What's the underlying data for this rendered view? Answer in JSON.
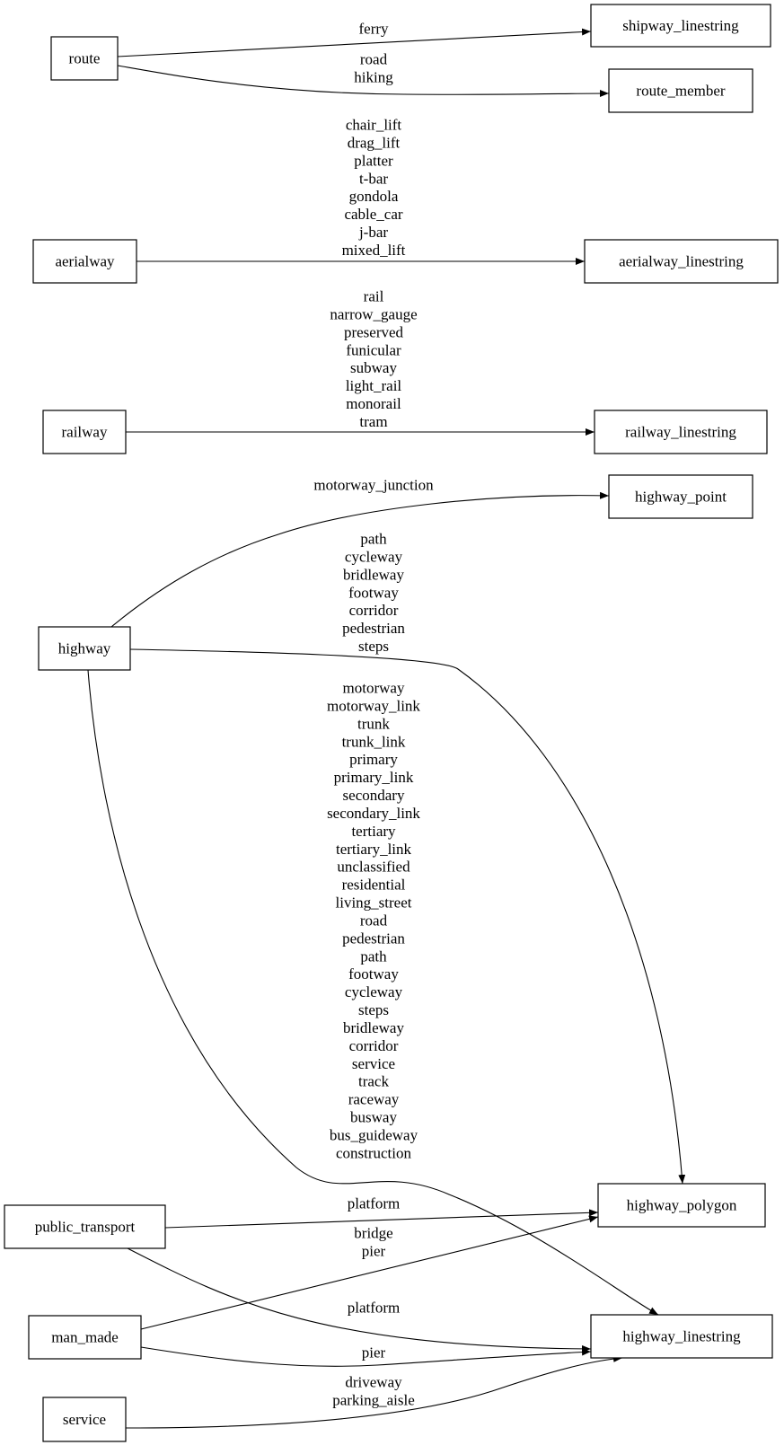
{
  "nodes": {
    "route": "route",
    "shipway_linestring": "shipway_linestring",
    "route_member": "route_member",
    "aerialway": "aerialway",
    "aerialway_linestring": "aerialway_linestring",
    "railway": "railway",
    "railway_linestring": "railway_linestring",
    "highway_point": "highway_point",
    "highway": "highway",
    "highway_polygon": "highway_polygon",
    "highway_linestring": "highway_linestring",
    "public_transport": "public_transport",
    "man_made": "man_made",
    "service": "service"
  },
  "edges": [
    {
      "from": "route",
      "to": "shipway_linestring",
      "labels": [
        "ferry"
      ]
    },
    {
      "from": "route",
      "to": "route_member",
      "labels": [
        "road",
        "hiking"
      ]
    },
    {
      "from": "aerialway",
      "to": "aerialway_linestring",
      "labels": [
        "chair_lift",
        "drag_lift",
        "platter",
        "t-bar",
        "gondola",
        "cable_car",
        "j-bar",
        "mixed_lift"
      ]
    },
    {
      "from": "railway",
      "to": "railway_linestring",
      "labels": [
        "rail",
        "narrow_gauge",
        "preserved",
        "funicular",
        "subway",
        "light_rail",
        "monorail",
        "tram"
      ]
    },
    {
      "from": "highway",
      "to": "highway_point",
      "labels": [
        "motorway_junction"
      ]
    },
    {
      "from": "highway",
      "to": "highway_polygon",
      "labels": [
        "path",
        "cycleway",
        "bridleway",
        "footway",
        "corridor",
        "pedestrian",
        "steps"
      ]
    },
    {
      "from": "highway",
      "to": "highway_linestring",
      "labels": [
        "motorway",
        "motorway_link",
        "trunk",
        "trunk_link",
        "primary",
        "primary_link",
        "secondary",
        "secondary_link",
        "tertiary",
        "tertiary_link",
        "unclassified",
        "residential",
        "living_street",
        "road",
        "pedestrian",
        "path",
        "footway",
        "cycleway",
        "steps",
        "bridleway",
        "corridor",
        "service",
        "track",
        "raceway",
        "busway",
        "bus_guideway",
        "construction"
      ]
    },
    {
      "from": "public_transport",
      "to": "highway_polygon",
      "labels": [
        "platform"
      ]
    },
    {
      "from": "man_made",
      "to": "highway_polygon",
      "labels": [
        "bridge",
        "pier"
      ]
    },
    {
      "from": "public_transport",
      "to": "highway_linestring",
      "labels": [
        "platform"
      ]
    },
    {
      "from": "man_made",
      "to": "highway_linestring",
      "labels": [
        "pier"
      ]
    },
    {
      "from": "service",
      "to": "highway_linestring",
      "labels": [
        "driveway",
        "parking_aisle"
      ]
    }
  ]
}
